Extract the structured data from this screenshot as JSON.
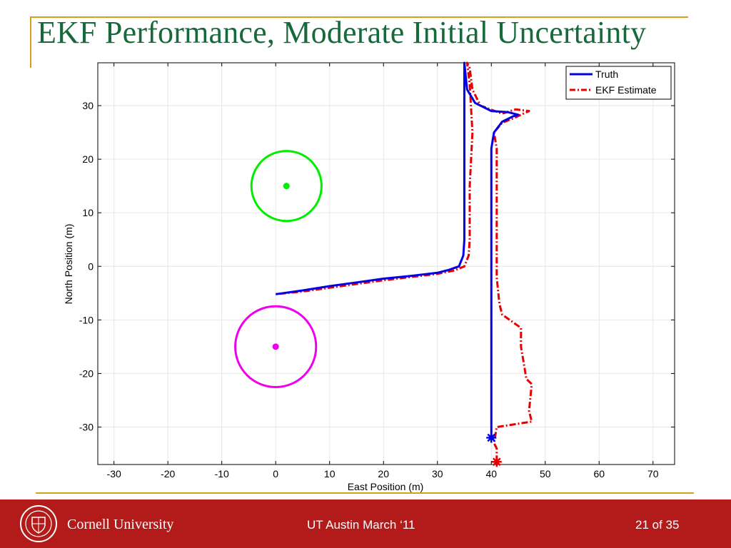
{
  "slide": {
    "title": "EKF Performance, Moderate Initial Uncertainty",
    "footer_org": "Cornell University",
    "footer_center": "UT Austin March ‘11",
    "footer_page": "21 of 35"
  },
  "chart_data": {
    "type": "line",
    "title": "",
    "xlabel": "East Position (m)",
    "ylabel": "North Position (m)",
    "xlim": [
      -33,
      74
    ],
    "ylim": [
      -37,
      38
    ],
    "xticks": [
      -30,
      -20,
      -10,
      0,
      10,
      20,
      30,
      40,
      50,
      60,
      70
    ],
    "yticks": [
      -30,
      -20,
      -10,
      0,
      10,
      20,
      30
    ],
    "grid": true,
    "legend_position": "top-right",
    "series": [
      {
        "name": "Truth",
        "color": "#0000e6",
        "style": "solid",
        "points": [
          [
            40,
            -32
          ],
          [
            40,
            -20
          ],
          [
            40,
            -10
          ],
          [
            40,
            0
          ],
          [
            40,
            10
          ],
          [
            40,
            22
          ],
          [
            40.5,
            25
          ],
          [
            42,
            27
          ],
          [
            44,
            28
          ],
          [
            45,
            28.3
          ],
          [
            43,
            28.8
          ],
          [
            40,
            29
          ],
          [
            37,
            30.5
          ],
          [
            35.5,
            33
          ],
          [
            35,
            38
          ],
          [
            35,
            34
          ],
          [
            35,
            25
          ],
          [
            35,
            15
          ],
          [
            35,
            5
          ],
          [
            34.8,
            2
          ],
          [
            34,
            0
          ],
          [
            32,
            -0.7
          ],
          [
            30,
            -1.2
          ],
          [
            25,
            -1.8
          ],
          [
            20,
            -2.3
          ],
          [
            15,
            -3
          ],
          [
            10,
            -3.7
          ],
          [
            5,
            -4.5
          ],
          [
            0,
            -5.2
          ]
        ]
      },
      {
        "name": "EKF Estimate",
        "color": "#e60000",
        "style": "dash-dot",
        "points": [
          [
            41,
            -36.5
          ],
          [
            41,
            -34
          ],
          [
            40.5,
            -33
          ],
          [
            41,
            -30
          ],
          [
            47.5,
            -29
          ],
          [
            47,
            -27
          ],
          [
            47.5,
            -22
          ],
          [
            46.5,
            -21
          ],
          [
            46,
            -18
          ],
          [
            45.5,
            -15
          ],
          [
            45.5,
            -11.5
          ],
          [
            42,
            -9
          ],
          [
            41.5,
            -7
          ],
          [
            41,
            -2
          ],
          [
            41,
            5
          ],
          [
            41,
            15
          ],
          [
            41,
            22
          ],
          [
            40.5,
            25
          ],
          [
            42,
            26.8
          ],
          [
            44,
            27.6
          ],
          [
            47,
            29
          ],
          [
            44.5,
            29.3
          ],
          [
            42,
            28.5
          ],
          [
            38,
            30
          ],
          [
            36.5,
            33
          ],
          [
            36,
            37
          ],
          [
            35.5,
            38
          ],
          [
            36,
            34
          ],
          [
            36.5,
            25
          ],
          [
            36,
            15
          ],
          [
            36,
            5
          ],
          [
            35.8,
            2
          ],
          [
            35,
            0
          ],
          [
            33,
            -0.8
          ],
          [
            30,
            -1.4
          ],
          [
            25,
            -2
          ],
          [
            20,
            -2.6
          ],
          [
            15,
            -3.3
          ],
          [
            10,
            -4
          ],
          [
            5,
            -4.7
          ],
          [
            0,
            -5.2
          ]
        ]
      }
    ],
    "markers": [
      {
        "x": 40,
        "y": -32,
        "color": "#0000e6",
        "symbol": "asterisk"
      },
      {
        "x": 41,
        "y": -36.5,
        "color": "#e60000",
        "symbol": "asterisk"
      }
    ],
    "landmarks": [
      {
        "x": 2,
        "y": 15,
        "radius": 6.5,
        "color": "#00ee00"
      },
      {
        "x": 0,
        "y": -15,
        "radius": 7.5,
        "color": "#ee00ee"
      }
    ]
  }
}
